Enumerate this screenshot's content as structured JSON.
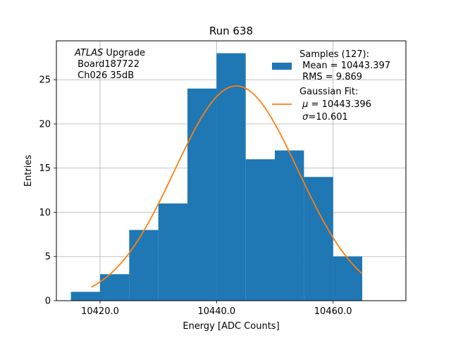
{
  "chart_data": {
    "type": "bar",
    "title": "Run 638",
    "xlabel": "Energy [ADC Counts]",
    "ylabel": "Entries",
    "xlim": [
      10412.5,
      10472.5
    ],
    "ylim": [
      0,
      29.4
    ],
    "xticks": [
      10420.0,
      10440.0,
      10460.0
    ],
    "xtick_labels": [
      "10420.0",
      "10440.0",
      "10460.0"
    ],
    "yticks": [
      0,
      5,
      10,
      15,
      20,
      25
    ],
    "ytick_labels": [
      "0",
      "5",
      "10",
      "15",
      "20",
      "25"
    ],
    "grid": true,
    "histogram": {
      "name": "Samples (127):",
      "color": "#1f77b4",
      "bin_edges": [
        10415,
        10420,
        10425,
        10430,
        10435,
        10440,
        10445,
        10450,
        10455,
        10460,
        10465
      ],
      "counts": [
        1,
        3,
        8,
        11,
        24,
        28,
        16,
        17,
        14,
        5
      ]
    },
    "fit": {
      "name": "Gaussian Fit:",
      "color": "#ff7f0e",
      "mu": 10443.396,
      "sigma": 10.601,
      "amplitude": 24.3,
      "x_range": [
        10418.5,
        10465
      ]
    },
    "annotation": {
      "italic": "ATLAS",
      "line1_rest": " Upgrade",
      "line2": " Board187722",
      "line3": " Ch026 35dB"
    },
    "legend": {
      "placement": "top-right",
      "samples_title": "Samples (127):",
      "samples_mean": " Mean = 10443.397",
      "samples_rms": " RMS = 9.869",
      "fit_title": "Gaussian Fit:",
      "fit_mu_symbol": "μ",
      "fit_mu_value": " = 10443.396",
      "fit_sigma_symbol": "σ",
      "fit_sigma_value": "=10.601"
    }
  }
}
